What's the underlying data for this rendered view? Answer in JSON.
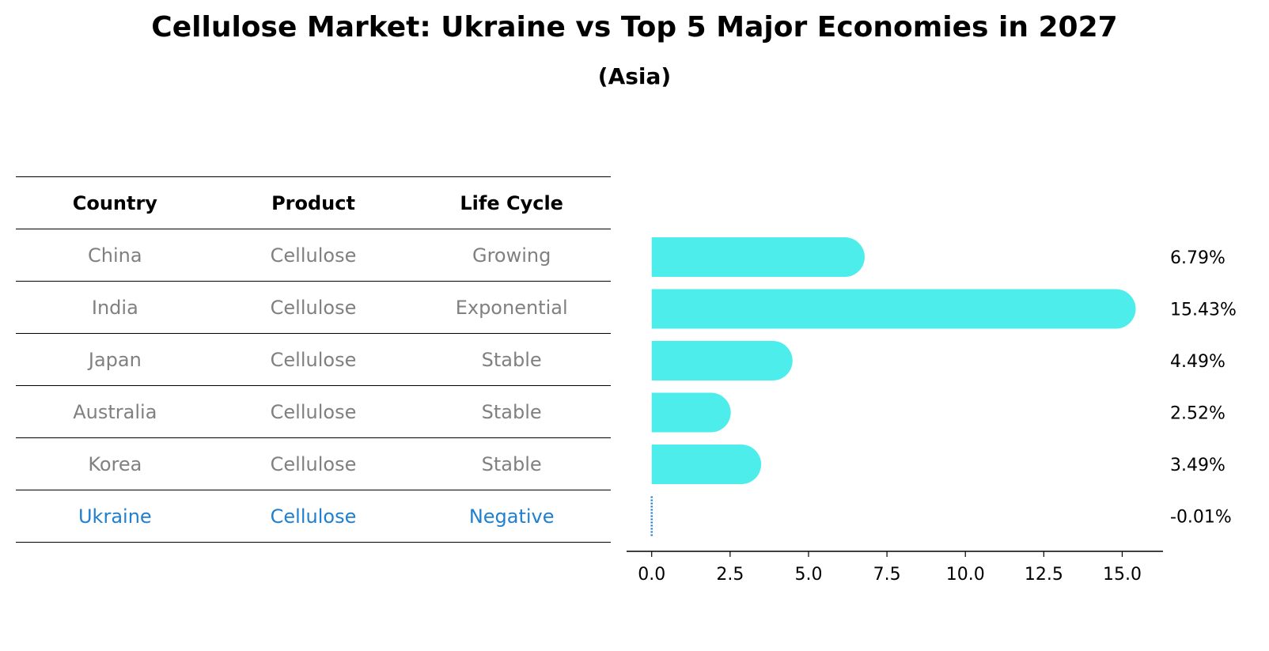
{
  "title": "Cellulose Market: Ukraine vs Top 5 Major Economies in 2027",
  "subtitle": "(Asia)",
  "table": {
    "headers": [
      "Country",
      "Product",
      "Life Cycle"
    ],
    "rows": [
      [
        "China",
        "Cellulose",
        "Growing"
      ],
      [
        "India",
        "Cellulose",
        "Exponential"
      ],
      [
        "Japan",
        "Cellulose",
        "Stable"
      ],
      [
        "Australia",
        "Cellulose",
        "Stable"
      ],
      [
        "Korea",
        "Cellulose",
        "Stable"
      ],
      [
        "Ukraine",
        "Cellulose",
        "Negative"
      ]
    ]
  },
  "colors": {
    "bar": "#4dedeb",
    "highlight": "#1f7fd0",
    "muted": "#808080"
  },
  "chart_data": {
    "type": "bar",
    "orientation": "horizontal",
    "categories": [
      "China",
      "India",
      "Japan",
      "Australia",
      "Korea",
      "Ukraine"
    ],
    "values": [
      6.79,
      15.43,
      4.49,
      2.52,
      3.49,
      -0.01
    ],
    "value_labels": [
      "6.79%",
      "15.43%",
      "4.49%",
      "2.52%",
      "3.49%",
      "-0.01%"
    ],
    "xticks": [
      0.0,
      2.5,
      5.0,
      7.5,
      10.0,
      12.5,
      15.0
    ],
    "xtick_labels": [
      "0.0",
      "2.5",
      "5.0",
      "7.5",
      "10.0",
      "12.5",
      "15.0"
    ],
    "xlim": [
      -0.8,
      16.3
    ],
    "xlabel": "",
    "ylabel": "",
    "grid": false
  }
}
